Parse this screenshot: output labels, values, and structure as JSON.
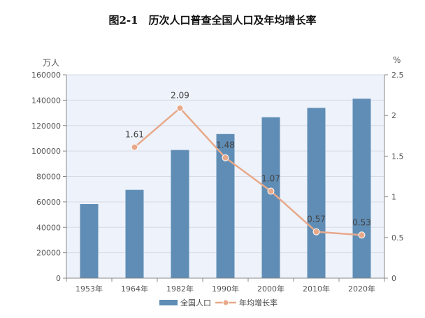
{
  "title": "图2-1　历次人口普查全国人口及年均增长率",
  "chart_data": {
    "type": "bar",
    "title": "图2-1　历次人口普查全国人口及年均增长率",
    "categories": [
      "1953年",
      "1964年",
      "1982年",
      "1990年",
      "2000年",
      "2010年",
      "2020年"
    ],
    "series": [
      {
        "name": "全国人口",
        "type": "bar",
        "axis": "left",
        "color": "#5f8db5",
        "values": [
          58260,
          69458,
          100818,
          113368,
          126583,
          133972,
          141178
        ]
      },
      {
        "name": "年均增长率",
        "type": "line",
        "axis": "right",
        "color": "#e8a98a",
        "values": [
          null,
          1.61,
          2.09,
          1.48,
          1.07,
          0.57,
          0.53
        ],
        "labels": [
          "",
          "1.61",
          "2.09",
          "1.48",
          "1.07",
          "0.57",
          "0.53"
        ]
      }
    ],
    "left_axis": {
      "unit": "万人",
      "ylim": [
        0,
        160000
      ],
      "ticks": [
        "0",
        "20000",
        "40000",
        "60000",
        "80000",
        "100000",
        "120000",
        "140000",
        "160000"
      ]
    },
    "right_axis": {
      "unit": "%",
      "ylim": [
        0,
        2.5
      ],
      "ticks": [
        "0",
        "0.5",
        "1",
        "1.5",
        "2",
        "2.5"
      ]
    },
    "grid": true,
    "plot_background": "#eef2fb",
    "legend_position": "bottom"
  }
}
